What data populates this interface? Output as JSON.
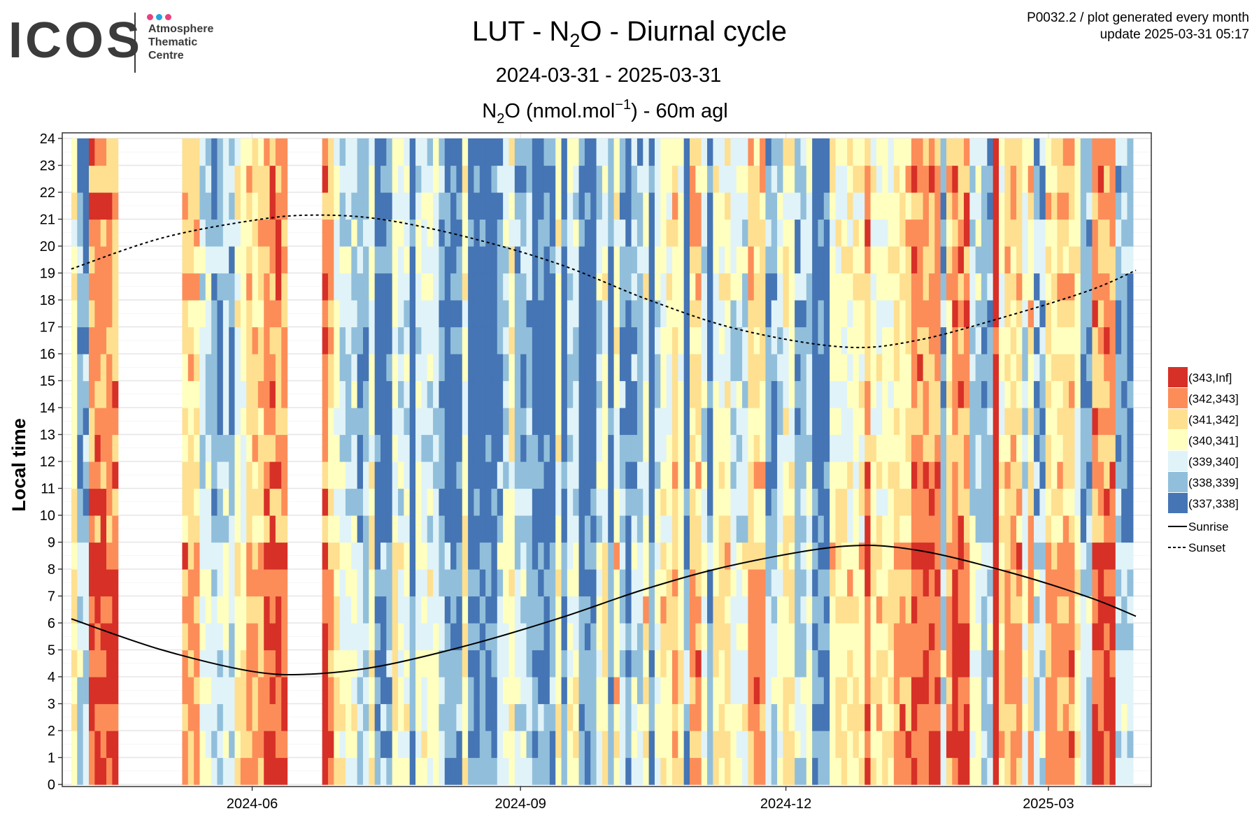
{
  "header": {
    "logo": {
      "wordmark": "ICOS",
      "subtitle_lines": [
        "Atmosphere",
        "Thematic",
        "Centre"
      ],
      "dot_colors": [
        "#e8417c",
        "#24a3e0",
        "#e8417c"
      ]
    },
    "meta_line1": "P0032.2 / plot generated every month",
    "meta_line2": "update  2025-03-31 05:17"
  },
  "chart_data": {
    "type": "heatmap",
    "title": {
      "pre": "LUT - N",
      "sub": "2",
      "post": "O - Diurnal cycle"
    },
    "subtitle": "2024-03-31 - 2025-03-31",
    "variable_label": {
      "pre": "N",
      "sub": "2",
      "mid": "O (nmol.mol",
      "sup": "−1",
      "post": ") - 60m agl"
    },
    "xlabel": "",
    "ylabel": "Local time",
    "x_range": [
      "2024-03-31",
      "2025-03-31"
    ],
    "x_tick_dates": [
      "2024-06-01",
      "2024-09-01",
      "2024-12-01",
      "2025-03-01"
    ],
    "x_tick_labels": [
      "2024-06",
      "2024-09",
      "2024-12",
      "2025-03"
    ],
    "y_range": [
      0,
      24
    ],
    "y_ticks": [
      0,
      1,
      2,
      3,
      4,
      5,
      6,
      7,
      8,
      9,
      10,
      11,
      12,
      13,
      14,
      15,
      16,
      17,
      18,
      19,
      20,
      21,
      22,
      23,
      24
    ],
    "grid": true,
    "legend_position": "right",
    "bins": [
      {
        "label": "(343,Inf]",
        "color": "#d73027"
      },
      {
        "label": "(342,343]",
        "color": "#fc8d59"
      },
      {
        "label": "(341,342]",
        "color": "#fee090"
      },
      {
        "label": "(340,341]",
        "color": "#ffffbf"
      },
      {
        "label": "(339,340]",
        "color": "#e0f3f8"
      },
      {
        "label": "(338,339]",
        "color": "#91bfdb"
      },
      {
        "label": "(337,338]",
        "color": "#4575b4"
      }
    ],
    "sun_lines": [
      {
        "name": "Sunrise",
        "style": "solid",
        "points": [
          [
            "2024-03-31",
            6.15
          ],
          [
            "2024-05-01",
            5.0
          ],
          [
            "2024-06-01",
            4.2
          ],
          [
            "2024-06-21",
            4.1
          ],
          [
            "2024-07-15",
            4.4
          ],
          [
            "2024-08-15",
            5.2
          ],
          [
            "2024-09-15",
            6.2
          ],
          [
            "2024-10-15",
            7.3
          ],
          [
            "2024-11-15",
            8.2
          ],
          [
            "2024-12-21",
            8.85
          ],
          [
            "2025-01-15",
            8.7
          ],
          [
            "2025-02-15",
            7.9
          ],
          [
            "2025-03-15",
            6.95
          ],
          [
            "2025-03-31",
            6.25
          ]
        ]
      },
      {
        "name": "Sunset",
        "style": "dashed",
        "points": [
          [
            "2024-03-31",
            19.15
          ],
          [
            "2024-05-01",
            20.3
          ],
          [
            "2024-06-01",
            20.95
          ],
          [
            "2024-06-21",
            21.15
          ],
          [
            "2024-07-15",
            21.0
          ],
          [
            "2024-08-15",
            20.3
          ],
          [
            "2024-09-15",
            19.3
          ],
          [
            "2024-10-15",
            18.0
          ],
          [
            "2024-11-15",
            16.9
          ],
          [
            "2024-12-21",
            16.25
          ],
          [
            "2025-01-15",
            16.5
          ],
          [
            "2025-02-15",
            17.4
          ],
          [
            "2025-03-15",
            18.35
          ],
          [
            "2025-03-31",
            19.1
          ]
        ]
      }
    ]
  }
}
